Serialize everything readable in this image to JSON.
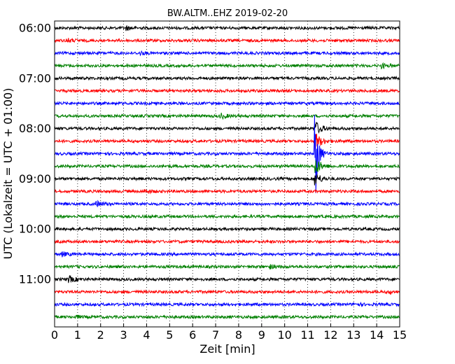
{
  "chart_data": {
    "type": "line",
    "title": "BW.ALTM..EHZ 2019-02-20",
    "xlabel": "Zeit  [min]",
    "ylabel": "UTC (Lokalzeit = UTC + 01:00)",
    "xlim": [
      0,
      15
    ],
    "x_ticks": [
      "0",
      "1",
      "2",
      "3",
      "4",
      "5",
      "6",
      "7",
      "8",
      "9",
      "10",
      "11",
      "12",
      "13",
      "14",
      "15"
    ],
    "y_ticks": [
      "06:00",
      "07:00",
      "08:00",
      "09:00",
      "10:00",
      "11:00"
    ],
    "grid": "vertical dotted lines at each minute",
    "trace_interval_minutes": 15,
    "trace_start": "06:00",
    "trace_colors": [
      "#000000",
      "#ff0000",
      "#0000ff",
      "#008000"
    ],
    "traces": [
      {
        "start": "06:00",
        "color": "#000000",
        "bursts": [
          {
            "t": 3.1,
            "amp": 3
          }
        ]
      },
      {
        "start": "06:15",
        "color": "#ff0000",
        "bursts": [
          {
            "t": 0.5,
            "amp": 3
          }
        ]
      },
      {
        "start": "06:30",
        "color": "#0000ff",
        "bursts": [
          {
            "t": 3.7,
            "amp": 2
          }
        ]
      },
      {
        "start": "06:45",
        "color": "#008000",
        "bursts": [
          {
            "t": 14.2,
            "amp": 3
          }
        ]
      },
      {
        "start": "07:00",
        "color": "#000000",
        "bursts": []
      },
      {
        "start": "07:15",
        "color": "#ff0000",
        "bursts": []
      },
      {
        "start": "07:30",
        "color": "#0000ff",
        "bursts": []
      },
      {
        "start": "07:45",
        "color": "#008000",
        "bursts": [
          {
            "t": 7.2,
            "amp": 4
          }
        ]
      },
      {
        "start": "08:00",
        "color": "#000000",
        "bursts": [
          {
            "t": 11.3,
            "amp": 12
          }
        ]
      },
      {
        "start": "08:15",
        "color": "#ff0000",
        "bursts": [
          {
            "t": 11.3,
            "amp": 15
          }
        ]
      },
      {
        "start": "08:30",
        "color": "#0000ff",
        "bursts": [
          {
            "t": 11.3,
            "amp": 92
          }
        ]
      },
      {
        "start": "08:45",
        "color": "#008000",
        "bursts": [
          {
            "t": 11.3,
            "amp": 14
          }
        ]
      },
      {
        "start": "09:00",
        "color": "#000000",
        "bursts": [
          {
            "t": 11.3,
            "amp": 10
          }
        ]
      },
      {
        "start": "09:15",
        "color": "#ff0000",
        "bursts": [
          {
            "t": 3.9,
            "amp": 3
          }
        ]
      },
      {
        "start": "09:30",
        "color": "#0000ff",
        "bursts": [
          {
            "t": 1.8,
            "amp": 4
          }
        ]
      },
      {
        "start": "09:45",
        "color": "#008000",
        "bursts": []
      },
      {
        "start": "10:00",
        "color": "#000000",
        "bursts": []
      },
      {
        "start": "10:15",
        "color": "#ff0000",
        "bursts": []
      },
      {
        "start": "10:30",
        "color": "#0000ff",
        "bursts": [
          {
            "t": 0.3,
            "amp": 3
          }
        ]
      },
      {
        "start": "10:45",
        "color": "#008000",
        "bursts": [
          {
            "t": 9.3,
            "amp": 3
          }
        ]
      },
      {
        "start": "11:00",
        "color": "#000000",
        "bursts": [
          {
            "t": 0.6,
            "amp": 5
          }
        ]
      },
      {
        "start": "11:15",
        "color": "#ff0000",
        "bursts": [
          {
            "t": 14.5,
            "amp": 2
          }
        ]
      },
      {
        "start": "11:30",
        "color": "#0000ff",
        "bursts": [
          {
            "t": 13.0,
            "amp": 2
          }
        ]
      },
      {
        "start": "11:45",
        "color": "#008000",
        "bursts": [
          {
            "t": 0.9,
            "amp": 2
          }
        ]
      }
    ]
  }
}
